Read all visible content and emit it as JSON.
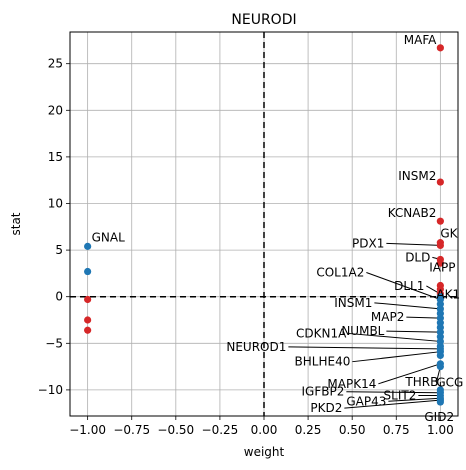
{
  "chart_data": {
    "type": "scatter",
    "title": "NEURODI",
    "xlabel": "weight",
    "ylabel": "stat",
    "xlim": [
      -1.1,
      1.1
    ],
    "ylim": [
      -12.8,
      28.4
    ],
    "xticks": [
      -1.0,
      -0.75,
      -0.5,
      -0.25,
      0.0,
      0.25,
      0.5,
      0.75,
      1.0
    ],
    "xtick_labels": [
      "−1.00",
      "−0.75",
      "−0.50",
      "−0.25",
      "0.00",
      "0.25",
      "0.50",
      "0.75",
      "1.00"
    ],
    "yticks": [
      -10,
      -5,
      0,
      5,
      10,
      15,
      20,
      25
    ],
    "ytick_labels": [
      "−10",
      "−5",
      "0",
      "5",
      "10",
      "15",
      "20",
      "25"
    ],
    "grid": true,
    "reference_lines": [
      {
        "axis": "x",
        "value": 0,
        "style": "dashed"
      },
      {
        "axis": "y",
        "value": 0,
        "style": "dashed"
      }
    ],
    "colors": {
      "positive": "#1f77b4",
      "negative": "#d62728"
    },
    "points": [
      {
        "x": -1.0,
        "y": 5.4,
        "sign": "positive",
        "label": "GNAL"
      },
      {
        "x": -1.0,
        "y": 2.7,
        "sign": "positive"
      },
      {
        "x": -1.0,
        "y": -0.3,
        "sign": "negative"
      },
      {
        "x": -1.0,
        "y": -2.5,
        "sign": "negative"
      },
      {
        "x": -1.0,
        "y": -3.6,
        "sign": "negative"
      },
      {
        "x": 1.0,
        "y": 26.7,
        "sign": "negative",
        "label": "MAFA"
      },
      {
        "x": 1.0,
        "y": 12.3,
        "sign": "negative",
        "label": "INSM2"
      },
      {
        "x": 1.0,
        "y": 8.1,
        "sign": "negative",
        "label": "KCNAB2"
      },
      {
        "x": 1.0,
        "y": 5.8,
        "sign": "negative",
        "label": "GK"
      },
      {
        "x": 1.0,
        "y": 5.5,
        "sign": "negative",
        "label": "PDX1"
      },
      {
        "x": 1.0,
        "y": 4.0,
        "sign": "negative",
        "label": "DLD"
      },
      {
        "x": 1.0,
        "y": 3.6,
        "sign": "negative"
      },
      {
        "x": 1.0,
        "y": 1.2,
        "sign": "negative",
        "label": "IAPP"
      },
      {
        "x": 1.0,
        "y": 0.8,
        "sign": "negative"
      },
      {
        "x": 1.0,
        "y": 0.3,
        "sign": "negative",
        "label": "DLL1"
      },
      {
        "x": 1.0,
        "y": 0.0,
        "sign": "positive",
        "label": "AK1"
      },
      {
        "x": 1.0,
        "y": -0.3,
        "sign": "positive",
        "label": "COL1A2"
      },
      {
        "x": 1.0,
        "y": -0.8,
        "sign": "positive"
      },
      {
        "x": 1.0,
        "y": -1.3,
        "sign": "positive",
        "label": "INSM1"
      },
      {
        "x": 1.0,
        "y": -1.8,
        "sign": "positive"
      },
      {
        "x": 1.0,
        "y": -2.3,
        "sign": "positive",
        "label": "MAP2"
      },
      {
        "x": 1.0,
        "y": -2.8,
        "sign": "positive"
      },
      {
        "x": 1.0,
        "y": -3.3,
        "sign": "positive"
      },
      {
        "x": 1.0,
        "y": -3.8,
        "sign": "positive",
        "label": "NUMBL"
      },
      {
        "x": 1.0,
        "y": -4.3,
        "sign": "positive"
      },
      {
        "x": 1.0,
        "y": -4.8,
        "sign": "positive",
        "label": "CDKN1A"
      },
      {
        "x": 1.0,
        "y": -5.3,
        "sign": "positive"
      },
      {
        "x": 1.0,
        "y": -5.6,
        "sign": "positive",
        "label": "NEUROD1"
      },
      {
        "x": 1.0,
        "y": -5.9,
        "sign": "positive",
        "label": "BHLHE40"
      },
      {
        "x": 1.0,
        "y": -6.3,
        "sign": "positive"
      },
      {
        "x": 1.0,
        "y": -7.5,
        "sign": "positive",
        "label": "GCG"
      },
      {
        "x": 1.0,
        "y": -7.2,
        "sign": "positive",
        "label": "MAPK14"
      },
      {
        "x": 1.0,
        "y": -10.0,
        "sign": "positive",
        "label": "THRB"
      },
      {
        "x": 1.0,
        "y": -10.3,
        "sign": "positive",
        "label": "IGFBP2"
      },
      {
        "x": 1.0,
        "y": -10.6,
        "sign": "positive",
        "label": "SLIT2"
      },
      {
        "x": 1.0,
        "y": -10.9,
        "sign": "positive",
        "label": "GAP43"
      },
      {
        "x": 1.0,
        "y": -11.1,
        "sign": "positive",
        "label": "PKD2"
      },
      {
        "x": 1.0,
        "y": -11.3,
        "sign": "positive",
        "label": "GID2"
      }
    ]
  }
}
